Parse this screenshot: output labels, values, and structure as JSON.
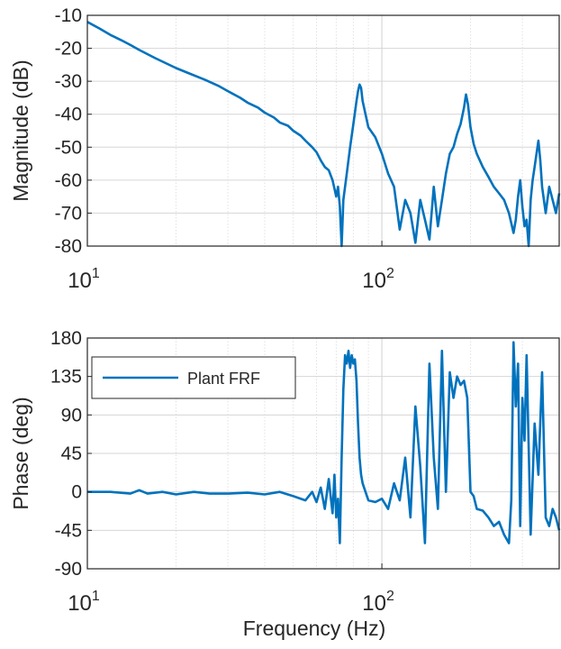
{
  "chart_data": [
    {
      "type": "line",
      "title": "",
      "xlabel": "",
      "ylabel": "Magnitude (dB)",
      "xscale": "log",
      "xlim": [
        10,
        400
      ],
      "ylim": [
        -80,
        -10
      ],
      "grid": "on (major and minor x)",
      "x_tick_labels": [
        {
          "value": 10,
          "base": "10",
          "exp": "1"
        },
        {
          "value": 100,
          "base": "10",
          "exp": "2"
        }
      ],
      "y_ticks": [
        -10,
        -20,
        -30,
        -40,
        -50,
        -60,
        -70,
        -80
      ],
      "series": [
        {
          "color": "#0072bd",
          "x": [
            10,
            11,
            12,
            13,
            14,
            15,
            17,
            20,
            22,
            25,
            28,
            30,
            33,
            35,
            38,
            40,
            43,
            45,
            48,
            50,
            53,
            55,
            58,
            60,
            62,
            64,
            66,
            68,
            70,
            71,
            72,
            73,
            74,
            76,
            78,
            80,
            82,
            83,
            84,
            85,
            86,
            88,
            90,
            95,
            100,
            105,
            110,
            115,
            120,
            125,
            130,
            135,
            140,
            145,
            150,
            155,
            160,
            165,
            170,
            175,
            180,
            185,
            190,
            193,
            196,
            200,
            205,
            210,
            220,
            230,
            240,
            250,
            260,
            270,
            280,
            285,
            290,
            295,
            300,
            305,
            310,
            315,
            320,
            325,
            330,
            335,
            340,
            345,
            350,
            360,
            370,
            380,
            390,
            400
          ],
          "y": [
            -12,
            -14,
            -16,
            -17.5,
            -19,
            -20.5,
            -23,
            -26,
            -27.5,
            -29.5,
            -31.5,
            -33,
            -35,
            -36.5,
            -38,
            -39.5,
            -41,
            -42.5,
            -43.5,
            -45,
            -46.5,
            -48,
            -50,
            -51.5,
            -54,
            -56,
            -57,
            -60,
            -65,
            -62,
            -68,
            -80,
            -66,
            -58,
            -50,
            -43,
            -36,
            -33,
            -31,
            -32,
            -36,
            -40,
            -44,
            -47,
            -52,
            -58,
            -62,
            -75,
            -66,
            -70,
            -79,
            -66,
            -72,
            -78,
            -62,
            -74,
            -66,
            -58,
            -52,
            -50,
            -46,
            -43,
            -38,
            -34,
            -37,
            -44,
            -49,
            -52,
            -56,
            -59,
            -62,
            -64,
            -66,
            -70,
            -76,
            -72,
            -65,
            -60,
            -68,
            -74,
            -72,
            -80,
            -66,
            -60,
            -56,
            -52,
            -48,
            -54,
            -62,
            -70,
            -62,
            -66,
            -70,
            -64
          ]
        }
      ]
    },
    {
      "type": "line",
      "title": "",
      "xlabel": "Frequency (Hz)",
      "ylabel": "Phase (deg)",
      "xscale": "log",
      "xlim": [
        10,
        400
      ],
      "ylim": [
        -90,
        180
      ],
      "grid": "on (major and minor x)",
      "x_tick_labels": [
        {
          "value": 10,
          "base": "10",
          "exp": "1"
        },
        {
          "value": 100,
          "base": "10",
          "exp": "2"
        }
      ],
      "y_ticks": [
        180,
        135,
        90,
        45,
        0,
        -45,
        -90
      ],
      "legend": {
        "position": "top-left",
        "entries": [
          "Plant FRF"
        ]
      },
      "series": [
        {
          "name": "Plant FRF",
          "color": "#0072bd",
          "x": [
            10,
            12,
            14,
            15,
            16,
            18,
            20,
            23,
            26,
            30,
            35,
            40,
            45,
            50,
            55,
            58,
            60,
            62,
            64,
            66,
            68,
            69,
            70,
            71,
            72,
            73,
            74,
            75,
            76,
            77,
            78,
            79,
            80,
            81,
            82,
            83,
            84,
            85,
            86,
            88,
            90,
            95,
            100,
            105,
            110,
            115,
            120,
            125,
            130,
            135,
            140,
            145,
            150,
            155,
            160,
            165,
            170,
            175,
            180,
            185,
            190,
            195,
            200,
            205,
            210,
            220,
            230,
            240,
            250,
            260,
            270,
            275,
            280,
            285,
            290,
            295,
            300,
            305,
            310,
            320,
            330,
            340,
            350,
            360,
            370,
            380,
            390,
            400
          ],
          "y": [
            0,
            0,
            -2,
            2,
            -2,
            0,
            -3,
            0,
            -2,
            -2,
            -1,
            -3,
            0,
            -5,
            -10,
            0,
            -12,
            5,
            -20,
            15,
            -25,
            20,
            -30,
            -8,
            -60,
            40,
            120,
            160,
            150,
            165,
            145,
            160,
            150,
            155,
            130,
            80,
            40,
            20,
            10,
            0,
            -10,
            -12,
            -8,
            -20,
            10,
            -10,
            40,
            -30,
            100,
            30,
            -60,
            150,
            40,
            -20,
            165,
            0,
            140,
            110,
            135,
            125,
            130,
            110,
            0,
            -5,
            -20,
            -22,
            -30,
            -40,
            -35,
            -50,
            -60,
            -10,
            175,
            100,
            150,
            -40,
            110,
            60,
            160,
            -50,
            80,
            20,
            140,
            -30,
            -40,
            -20,
            -30,
            -45
          ]
        }
      ]
    }
  ]
}
